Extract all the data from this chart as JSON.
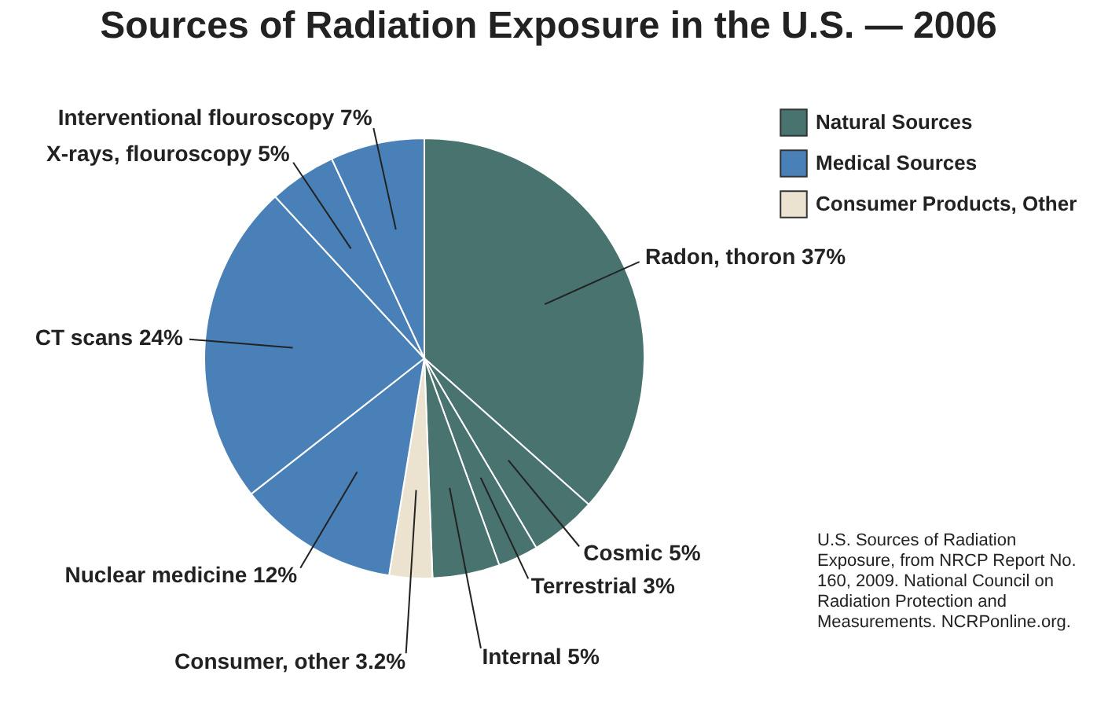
{
  "chart_data": [
    {
      "type": "pie",
      "title": "Sources of Radiation Exposure in the U.S. — 2006",
      "categories": [
        "Radon, thoron",
        "Cosmic",
        "Terrestrial",
        "Internal",
        "Consumer, other",
        "Nuclear medicine",
        "CT scans",
        "X-rays, flouroscopy",
        "Interventional flouroscopy"
      ],
      "values": [
        37,
        5,
        3,
        5,
        3.2,
        12,
        24,
        5,
        7
      ],
      "colors": [
        "#48736f",
        "#48736f",
        "#48736f",
        "#48736f",
        "#ebe3cf",
        "#4a80b8",
        "#4a80b8",
        "#4a80b8",
        "#4a80b8"
      ],
      "value_labels": [
        "37%",
        "5%",
        "3%",
        "5%",
        "3.2%",
        "12%",
        "24%",
        "5%",
        "7%"
      ],
      "annotations": [
        "U.S. Sources of Radiation Exposure, from NRCP Report No. 160, 2009. National Council on Radiation Protection and Measurements. NCRPonline.org."
      ]
    },
    {
      "type": "other",
      "categories": [
        "Natural Sources",
        "Medical Sources",
        "Consumer Products, Other"
      ],
      "colors": [
        "#48736f",
        "#4a80b8",
        "#ebe3cf"
      ]
    }
  ]
}
